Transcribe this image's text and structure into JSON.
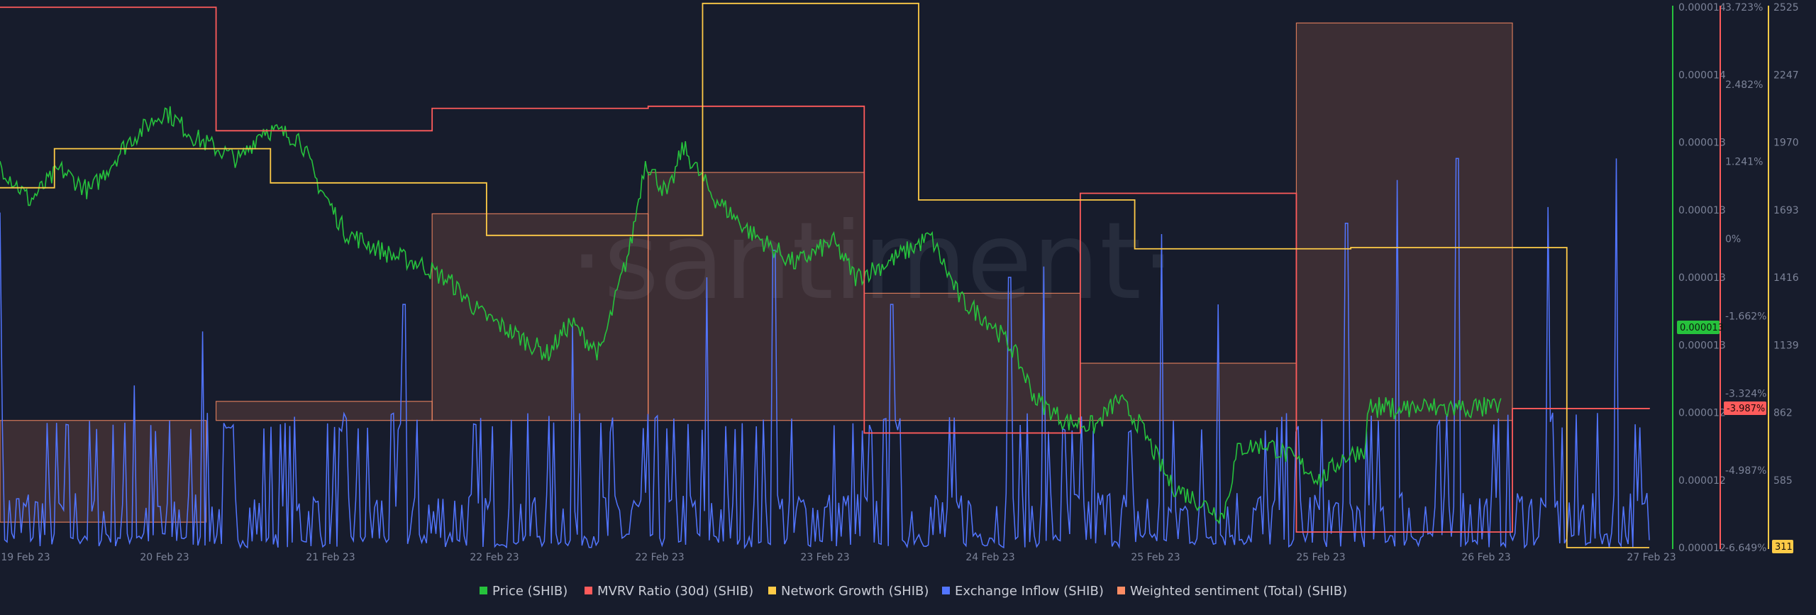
{
  "watermark": "·santiment·",
  "chart_data": {
    "type": "line",
    "x_ticks": [
      "19 Feb 23",
      "20 Feb 23",
      "21 Feb 23",
      "22 Feb 23",
      "22 Feb 23",
      "23 Feb 23",
      "24 Feb 23",
      "25 Feb 23",
      "25 Feb 23",
      "26 Feb 23",
      "27 Feb 23"
    ],
    "axes": {
      "price": {
        "ticks": [
          "0.000014",
          "0.000014",
          "0.000013",
          "0.000013",
          "0.000013",
          "0.000013",
          "0.000012",
          "0.000012",
          "0.000012"
        ],
        "current": "0.000013",
        "color": "#26c23c"
      },
      "mvrv": {
        "ticks": [
          "3.723%",
          "2.482%",
          "1.241%",
          "0%",
          "-1.662%",
          "-3.324%",
          "-4.987%",
          "-6.649%"
        ],
        "current": "-3.987%",
        "color": "#ff5b5b"
      },
      "network": {
        "ticks": [
          "2525",
          "2247",
          "1970",
          "1693",
          "1416",
          "1139",
          "862",
          "585",
          "311"
        ],
        "current": "311",
        "color": "#ffcb47"
      }
    },
    "series": [
      {
        "name": "Price (SHIB)",
        "color": "#26c23c",
        "key": "price"
      },
      {
        "name": "MVRV Ratio (30d) (SHIB)",
        "color": "#ff5b5b",
        "key": "mvrv"
      },
      {
        "name": "Network Growth (SHIB)",
        "color": "#ffcb47",
        "key": "network"
      },
      {
        "name": "Exchange Inflow (SHIB)",
        "color": "#5275ff",
        "key": "inflow"
      },
      {
        "name": "Weighted sentiment (Total) (SHIB)",
        "color": "#ff8d64",
        "key": "sentiment"
      }
    ],
    "mvrv_steps": [
      [
        0,
        3.72
      ],
      [
        0.131,
        1.35
      ],
      [
        0.262,
        1.78
      ],
      [
        0.393,
        1.82
      ],
      [
        0.524,
        -4.45
      ],
      [
        0.655,
        0.15
      ],
      [
        0.786,
        -6.35
      ],
      [
        0.917,
        -3.98
      ],
      [
        1.0,
        -3.99
      ]
    ],
    "network_steps": [
      [
        0,
        1785
      ],
      [
        0.033,
        1945
      ],
      [
        0.164,
        1805
      ],
      [
        0.295,
        1590
      ],
      [
        0.426,
        2540
      ],
      [
        0.557,
        1735
      ],
      [
        0.688,
        1535
      ],
      [
        0.819,
        1540
      ],
      [
        0.95,
        311
      ],
      [
        1.0,
        311
      ]
    ],
    "sentiment_bars": [
      [
        0,
        0.125,
        -0.32
      ],
      [
        0.131,
        0.131,
        0.06
      ],
      [
        0.262,
        0.131,
        0.65
      ],
      [
        0.393,
        0.131,
        0.78
      ],
      [
        0.524,
        0.131,
        0.4
      ],
      [
        0.655,
        0.131,
        0.18
      ],
      [
        0.786,
        0.131,
        1.25
      ],
      [
        0.917,
        0.083,
        0.0
      ]
    ],
    "sentiment_range": [
      -0.4,
      1.3
    ],
    "price_anchors": [
      [
        0,
        1.55e-05
      ],
      [
        0.02,
        1.47e-05
      ],
      [
        0.04,
        1.54e-05
      ],
      [
        0.06,
        1.49e-05
      ],
      [
        0.085,
        1.6e-05
      ],
      [
        0.11,
        1.67e-05
      ],
      [
        0.13,
        1.61e-05
      ],
      [
        0.16,
        1.56e-05
      ],
      [
        0.175,
        1.63e-05
      ],
      [
        0.2,
        1.61e-05
      ],
      [
        0.21,
        1.52e-05
      ],
      [
        0.23,
        1.4e-05
      ],
      [
        0.26,
        1.35e-05
      ],
      [
        0.28,
        1.33e-05
      ],
      [
        0.3,
        1.29e-05
      ],
      [
        0.32,
        1.22e-05
      ],
      [
        0.345,
        1.17e-05
      ],
      [
        0.365,
        1.13e-05
      ],
      [
        0.38,
        1.2e-05
      ],
      [
        0.4,
        1.13e-05
      ],
      [
        0.42,
        1.37e-05
      ],
      [
        0.43,
        1.56e-05
      ],
      [
        0.445,
        1.48e-05
      ],
      [
        0.455,
        1.59e-05
      ],
      [
        0.475,
        1.48e-05
      ],
      [
        0.5,
        1.4e-05
      ],
      [
        0.53,
        1.33e-05
      ],
      [
        0.555,
        1.38e-05
      ],
      [
        0.57,
        1.3e-05
      ],
      [
        0.59,
        1.33e-05
      ],
      [
        0.62,
        1.39e-05
      ],
      [
        0.64,
        1.25e-05
      ],
      [
        0.66,
        1.2e-05
      ],
      [
        0.675,
        1.14e-05
      ],
      [
        0.69,
        1.03e-05
      ],
      [
        0.71,
        9.8e-06
      ],
      [
        0.73,
        9.7e-06
      ],
      [
        0.745,
        1.03e-05
      ],
      [
        0.76,
        9.7e-06
      ],
      [
        0.78,
        8.4e-06
      ],
      [
        0.8,
        8e-06
      ],
      [
        0.815,
        7.7e-06
      ],
      [
        0.825,
        9.2e-06
      ],
      [
        0.845,
        9.3e-06
      ],
      [
        0.865,
        8.9e-06
      ],
      [
        0.88,
        8.5e-06
      ],
      [
        0.895,
        9e-06
      ],
      [
        0.91,
        9.2e-06
      ],
      [
        0.925,
        1.08e-05
      ],
      [
        0.94,
        1.03e-05
      ],
      [
        0.96,
        1.02e-05
      ],
      [
        0.98,
        1.07e-05
      ],
      [
        1.0,
        1.01e-05
      ]
    ],
    "price_range": [
      7e-06,
      1.9e-05
    ],
    "inflow_spike_max": 1.0
  },
  "legend": {
    "price": "Price (SHIB)",
    "mvrv": "MVRV Ratio (30d) (SHIB)",
    "network": "Network Growth (SHIB)",
    "inflow": "Exchange Inflow (SHIB)",
    "sentiment": "Weighted sentiment (Total) (SHIB)"
  }
}
